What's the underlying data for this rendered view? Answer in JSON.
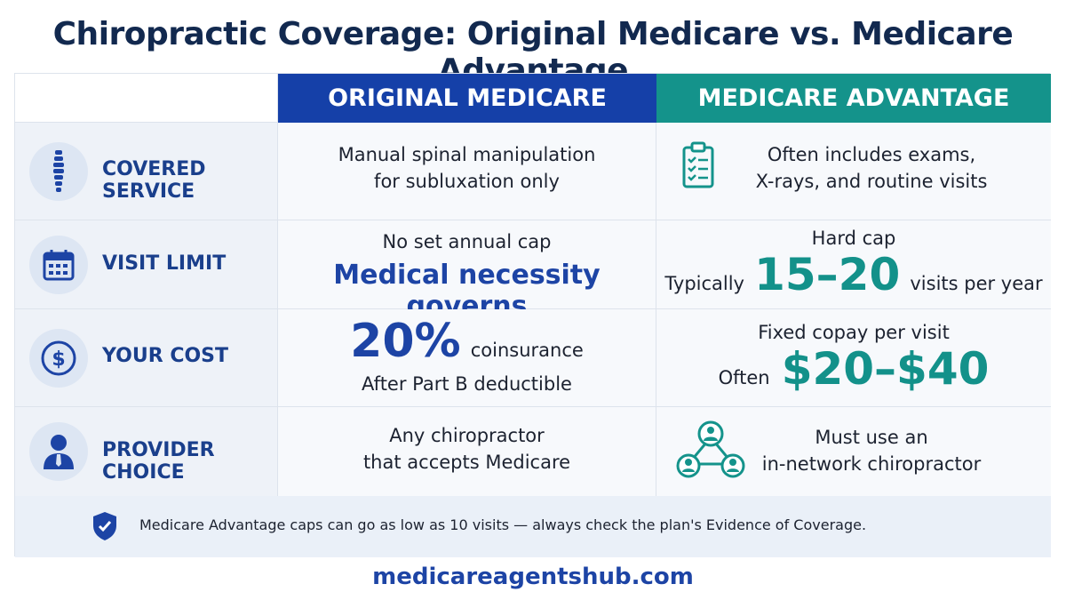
{
  "title": "Chiropractic Coverage: Original Medicare vs. Medicare Advantage",
  "columns": {
    "original": "ORIGINAL MEDICARE",
    "advantage": "MEDICARE ADVANTAGE"
  },
  "rows": [
    {
      "label": "COVERED SERVICE",
      "icon": "spine-icon",
      "original": {
        "line1": "Manual spinal manipulation",
        "line2": "for subluxation only"
      },
      "advantage": {
        "line1": "Often includes exams,",
        "line2": "X-rays, and routine visits",
        "icon": "clipboard-checklist-icon"
      }
    },
    {
      "label": "VISIT LIMIT",
      "icon": "calendar-icon",
      "original": {
        "line1": "No set annual cap",
        "line2": "Medical necessity governs"
      },
      "advantage": {
        "line1": "Hard cap",
        "prefix": "Typically",
        "highlight": "15–20",
        "suffix": "visits per year"
      }
    },
    {
      "label": "YOUR COST",
      "icon": "dollar-icon",
      "original": {
        "highlight": "20%",
        "suffix": "coinsurance",
        "line2": "After Part B deductible"
      },
      "advantage": {
        "line1": "Fixed copay per visit",
        "prefix": "Often",
        "highlight": "$20–$40"
      }
    },
    {
      "label": "PROVIDER CHOICE",
      "icon": "person-icon",
      "original": {
        "line1": "Any chiropractor",
        "line2": "that accepts Medicare"
      },
      "advantage": {
        "line1": "Must use an",
        "line2": "in-network chiropractor",
        "icon": "network-icon"
      }
    }
  ],
  "note": "Medicare Advantage caps can go as low as 10 visits — always check the plan's Evidence of Coverage.",
  "footer": "medicareagentshub.com",
  "colors": {
    "navy": "#1540a8",
    "teal": "#14938b",
    "title": "#12294f"
  }
}
